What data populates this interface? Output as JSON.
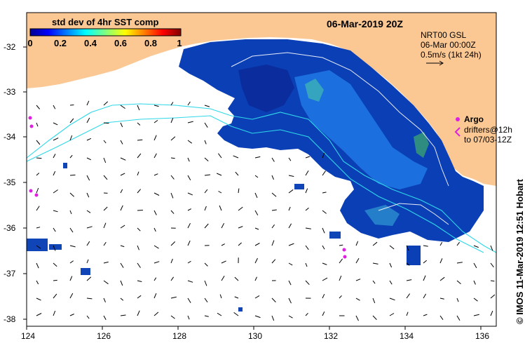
{
  "header": {
    "date_title": "06-Mar-2019 20Z",
    "colorbar_title": "std dev of 4hr SST comp",
    "colorbar_ticks": [
      "0",
      "0.2",
      "0.4",
      "0.6",
      "0.8",
      "1"
    ]
  },
  "legend": {
    "current_line1": "NRT00 GSL",
    "current_line2": "06-Mar 00:00Z",
    "current_line3": "0.5m/s (1kt 24h)",
    "argo_label": "Argo",
    "drifters_line1": "drifters@12h",
    "drifters_line2": "to 07/03-12Z"
  },
  "axes": {
    "x_ticks": [
      "124",
      "126",
      "128",
      "130",
      "132",
      "134",
      "136"
    ],
    "y_ticks": [
      "-32",
      "-33",
      "-34",
      "-35",
      "-36",
      "-37",
      "-38"
    ]
  },
  "credit": "© IMOS 11-Mar-2019 12:51 Hobart",
  "colors": {
    "land": "#fbc894",
    "ocean": "#ffffff",
    "sst_low": "#001a8c",
    "sst_mid": "#0a5ed8",
    "contour": "#2fd8e8",
    "argo": "#e020e0"
  }
}
